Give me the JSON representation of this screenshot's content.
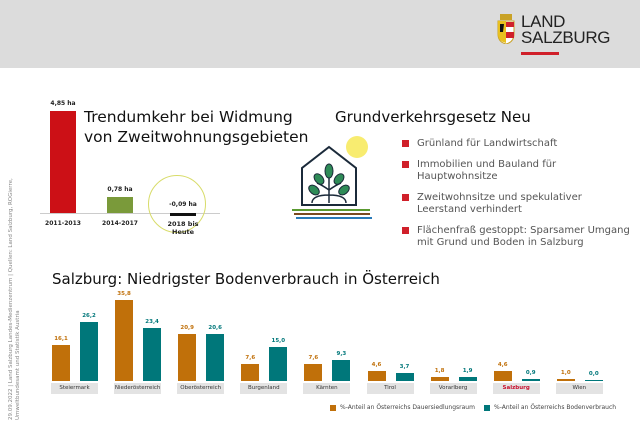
{
  "logo": {
    "line1": "LAND",
    "line2": "SALZBURG"
  },
  "side_note": {
    "line1": "29.09.2022 | Land Salzburg Landes-Medienzentrum | Quellen: Land Salzburg, ROGierre,",
    "line2": "Umweltbundesamt und Statistik Austria"
  },
  "top_chart": {
    "title_line1": "Trendumkehr bei Widmung",
    "title_line2": "von Zweitwohnungsgebieten"
  },
  "law": {
    "title": "Grundverkehrsgesetz Neu",
    "items": [
      {
        "line1": "Grünland für Landwirtschaft",
        "line2": ""
      },
      {
        "line1": "Immobilien und Bauland für",
        "line2": "Hauptwohnsitze"
      },
      {
        "line1": "Zweitwohnsitze und spekulativer",
        "line2": "Leerstand verhindert"
      },
      {
        "line1": "Flächenfraß gestoppt: Sparsamer Umgang",
        "line2": "mit Grund und Boden in Salzburg"
      }
    ]
  },
  "bottom_chart": {
    "title": "Salzburg: Niedrigster Bodenverbrauch in Österreich"
  },
  "chart_data": [
    {
      "type": "bar",
      "categories": [
        "2011-2013",
        "2014-2017",
        "2018 bis Heute"
      ],
      "values": [
        4.85,
        0.78,
        -0.09
      ],
      "value_labels": [
        "4,85 ha",
        "0,78 ha",
        "-0,09 ha"
      ],
      "colors": [
        "#cc1016",
        "#7a9a3a",
        "#111111"
      ],
      "highlight_color": "#d8dc6a"
    },
    {
      "type": "bar",
      "categories": [
        "Steiermark",
        "Niederösterreich",
        "Oberösterreich",
        "Burgenland",
        "Kärnten",
        "Tirol",
        "Vorarlberg",
        "Salzburg",
        "Wien"
      ],
      "series": [
        {
          "name": "%-Anteil an Österreichs Dauersiedlungsraum",
          "values": [
            16.1,
            35.8,
            20.9,
            7.6,
            7.6,
            4.6,
            1.8,
            4.6,
            1.0
          ],
          "labels": [
            "16,1",
            "35,8",
            "20,9",
            "7,6",
            "7,6",
            "4,6",
            "1,8",
            "4,6",
            "1,0"
          ],
          "color": "#c0700a"
        },
        {
          "name": "%-Anteil an Österreichs Bodenverbrauch",
          "values": [
            26.2,
            23.4,
            20.6,
            15.0,
            9.3,
            3.7,
            1.9,
            0.9,
            0.0
          ],
          "labels": [
            "26,2",
            "23,4",
            "20,6",
            "15,0",
            "9,3",
            "3,7",
            "1,9",
            "0,9",
            "0,0"
          ],
          "color": "#00777a"
        }
      ],
      "highlight_category": "Salzburg",
      "highlight_color": "#c8102e",
      "legend": "bottom-right"
    }
  ]
}
